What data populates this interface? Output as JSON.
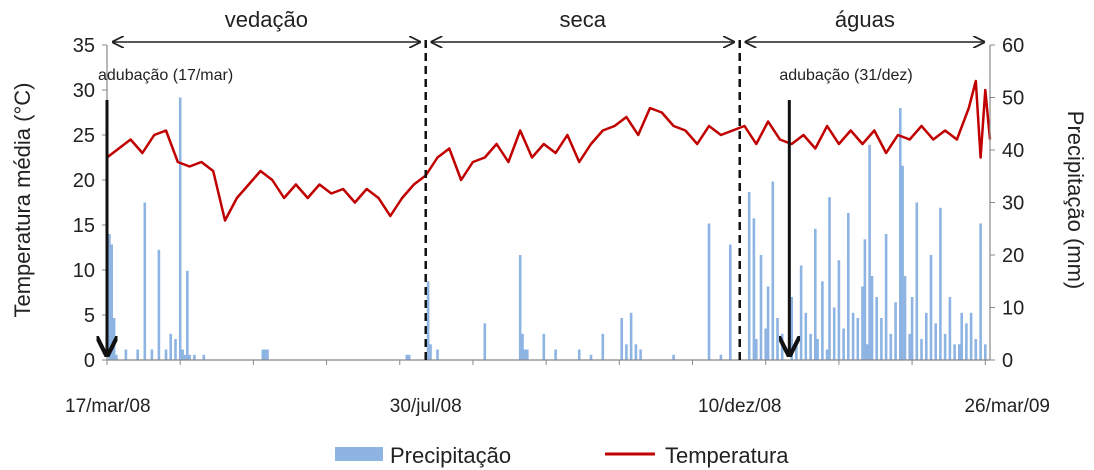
{
  "chart_data": {
    "type": "bar+line",
    "title": "",
    "x_ticks": [
      "17/mar/08",
      "30/jul/08",
      "10/dez/08",
      "26/mar/09"
    ],
    "y_left": {
      "label": "Temperatura média (°C)",
      "ticks": [
        0,
        5,
        10,
        15,
        20,
        25,
        30,
        35
      ],
      "range": [
        0,
        35
      ]
    },
    "y_right": {
      "label": "Precipitação (mm)",
      "ticks": [
        0,
        10,
        20,
        30,
        40,
        50,
        60
      ],
      "range": [
        0,
        60
      ]
    },
    "periods": [
      {
        "label": "vedação",
        "start_day": 0,
        "end_day": 135
      },
      {
        "label": "seca",
        "start_day": 135,
        "end_day": 268
      },
      {
        "label": "águas",
        "start_day": 268,
        "end_day": 374
      }
    ],
    "annotations": [
      {
        "text": "adubação (17/mar)",
        "day": 0
      },
      {
        "text": "adubação (31/dez)",
        "day": 289
      }
    ],
    "tick_days": [
      0,
      135,
      268,
      374
    ],
    "legend": {
      "precip": "Precipitação",
      "temp": "Temperatura",
      "placement": "bottom"
    },
    "colors": {
      "precip": "#8db4e2",
      "temp": "#c00000"
    },
    "series": [
      {
        "name": "Temperatura",
        "axis": "left",
        "day": [
          0,
          5,
          10,
          15,
          20,
          25,
          30,
          35,
          40,
          45,
          50,
          55,
          60,
          65,
          70,
          75,
          80,
          85,
          90,
          95,
          100,
          105,
          110,
          115,
          120,
          125,
          130,
          135,
          140,
          145,
          150,
          155,
          160,
          165,
          170,
          175,
          180,
          185,
          190,
          195,
          200,
          205,
          210,
          215,
          220,
          225,
          230,
          235,
          240,
          245,
          250,
          255,
          260,
          265,
          270,
          275,
          280,
          285,
          290,
          295,
          300,
          305,
          310,
          315,
          320,
          325,
          330,
          335,
          340,
          345,
          350,
          355,
          360,
          365,
          368,
          370,
          372,
          374
        ],
        "values": [
          22.5,
          23.5,
          24.5,
          23,
          25,
          25.5,
          22,
          21.5,
          22,
          21,
          15.5,
          18,
          19.5,
          21,
          20,
          18,
          19.5,
          18,
          19.5,
          18.5,
          19,
          17.5,
          19,
          18,
          16,
          18,
          19.5,
          20.5,
          22.5,
          23.5,
          20,
          22,
          22.5,
          24,
          22,
          25.5,
          22.5,
          24,
          23,
          25,
          22,
          24,
          25.5,
          26,
          27,
          25,
          28,
          27.5,
          26,
          25.5,
          24,
          26,
          25,
          25.5,
          26,
          24,
          26.5,
          24.5,
          24,
          25,
          23.5,
          26,
          24,
          25.5,
          24,
          25.5,
          23,
          25,
          24.5,
          26,
          24.5,
          25.5,
          24.5,
          28,
          31,
          22.5,
          30,
          24.5
        ]
      },
      {
        "name": "Precipitação",
        "axis": "right",
        "day": [
          1,
          2,
          3,
          4,
          8,
          13,
          16,
          19,
          22,
          25,
          27,
          29,
          31,
          32,
          33,
          34,
          35,
          37,
          41,
          66,
          67,
          68,
          127,
          128,
          136,
          137,
          140,
          160,
          175,
          176,
          177,
          178,
          185,
          190,
          200,
          205,
          210,
          218,
          220,
          222,
          224,
          226,
          240,
          255,
          260,
          264,
          272,
          274,
          275,
          277,
          279,
          280,
          282,
          284,
          286,
          290,
          292,
          294,
          296,
          298,
          300,
          301,
          303,
          305,
          306,
          308,
          310,
          312,
          314,
          316,
          318,
          320,
          321,
          322,
          323,
          324,
          326,
          328,
          330,
          332,
          334,
          336,
          337,
          338,
          340,
          341,
          343,
          345,
          347,
          349,
          351,
          353,
          355,
          357,
          359,
          361,
          362,
          364,
          366,
          368,
          370,
          372
        ],
        "values": [
          24,
          22,
          8,
          1,
          2,
          2,
          30,
          2,
          21,
          2,
          5,
          4,
          50,
          2,
          1,
          17,
          1,
          1,
          1,
          2,
          2,
          2,
          1,
          1,
          15,
          3,
          2,
          7,
          20,
          5,
          2,
          2,
          5,
          2,
          2,
          1,
          5,
          8,
          3,
          9,
          3,
          2,
          1,
          26,
          1,
          22,
          32,
          27,
          4,
          20,
          6,
          14,
          34,
          8,
          5,
          12,
          3,
          18,
          9,
          5,
          25,
          4,
          15,
          2,
          31,
          10,
          19,
          6,
          28,
          9,
          8,
          14,
          23,
          3,
          41,
          16,
          12,
          8,
          24,
          5,
          11,
          48,
          37,
          16,
          5,
          12,
          30,
          4,
          9,
          20,
          7,
          29,
          5,
          12,
          3,
          3,
          9,
          7,
          9,
          4,
          26,
          3
        ]
      }
    ]
  }
}
